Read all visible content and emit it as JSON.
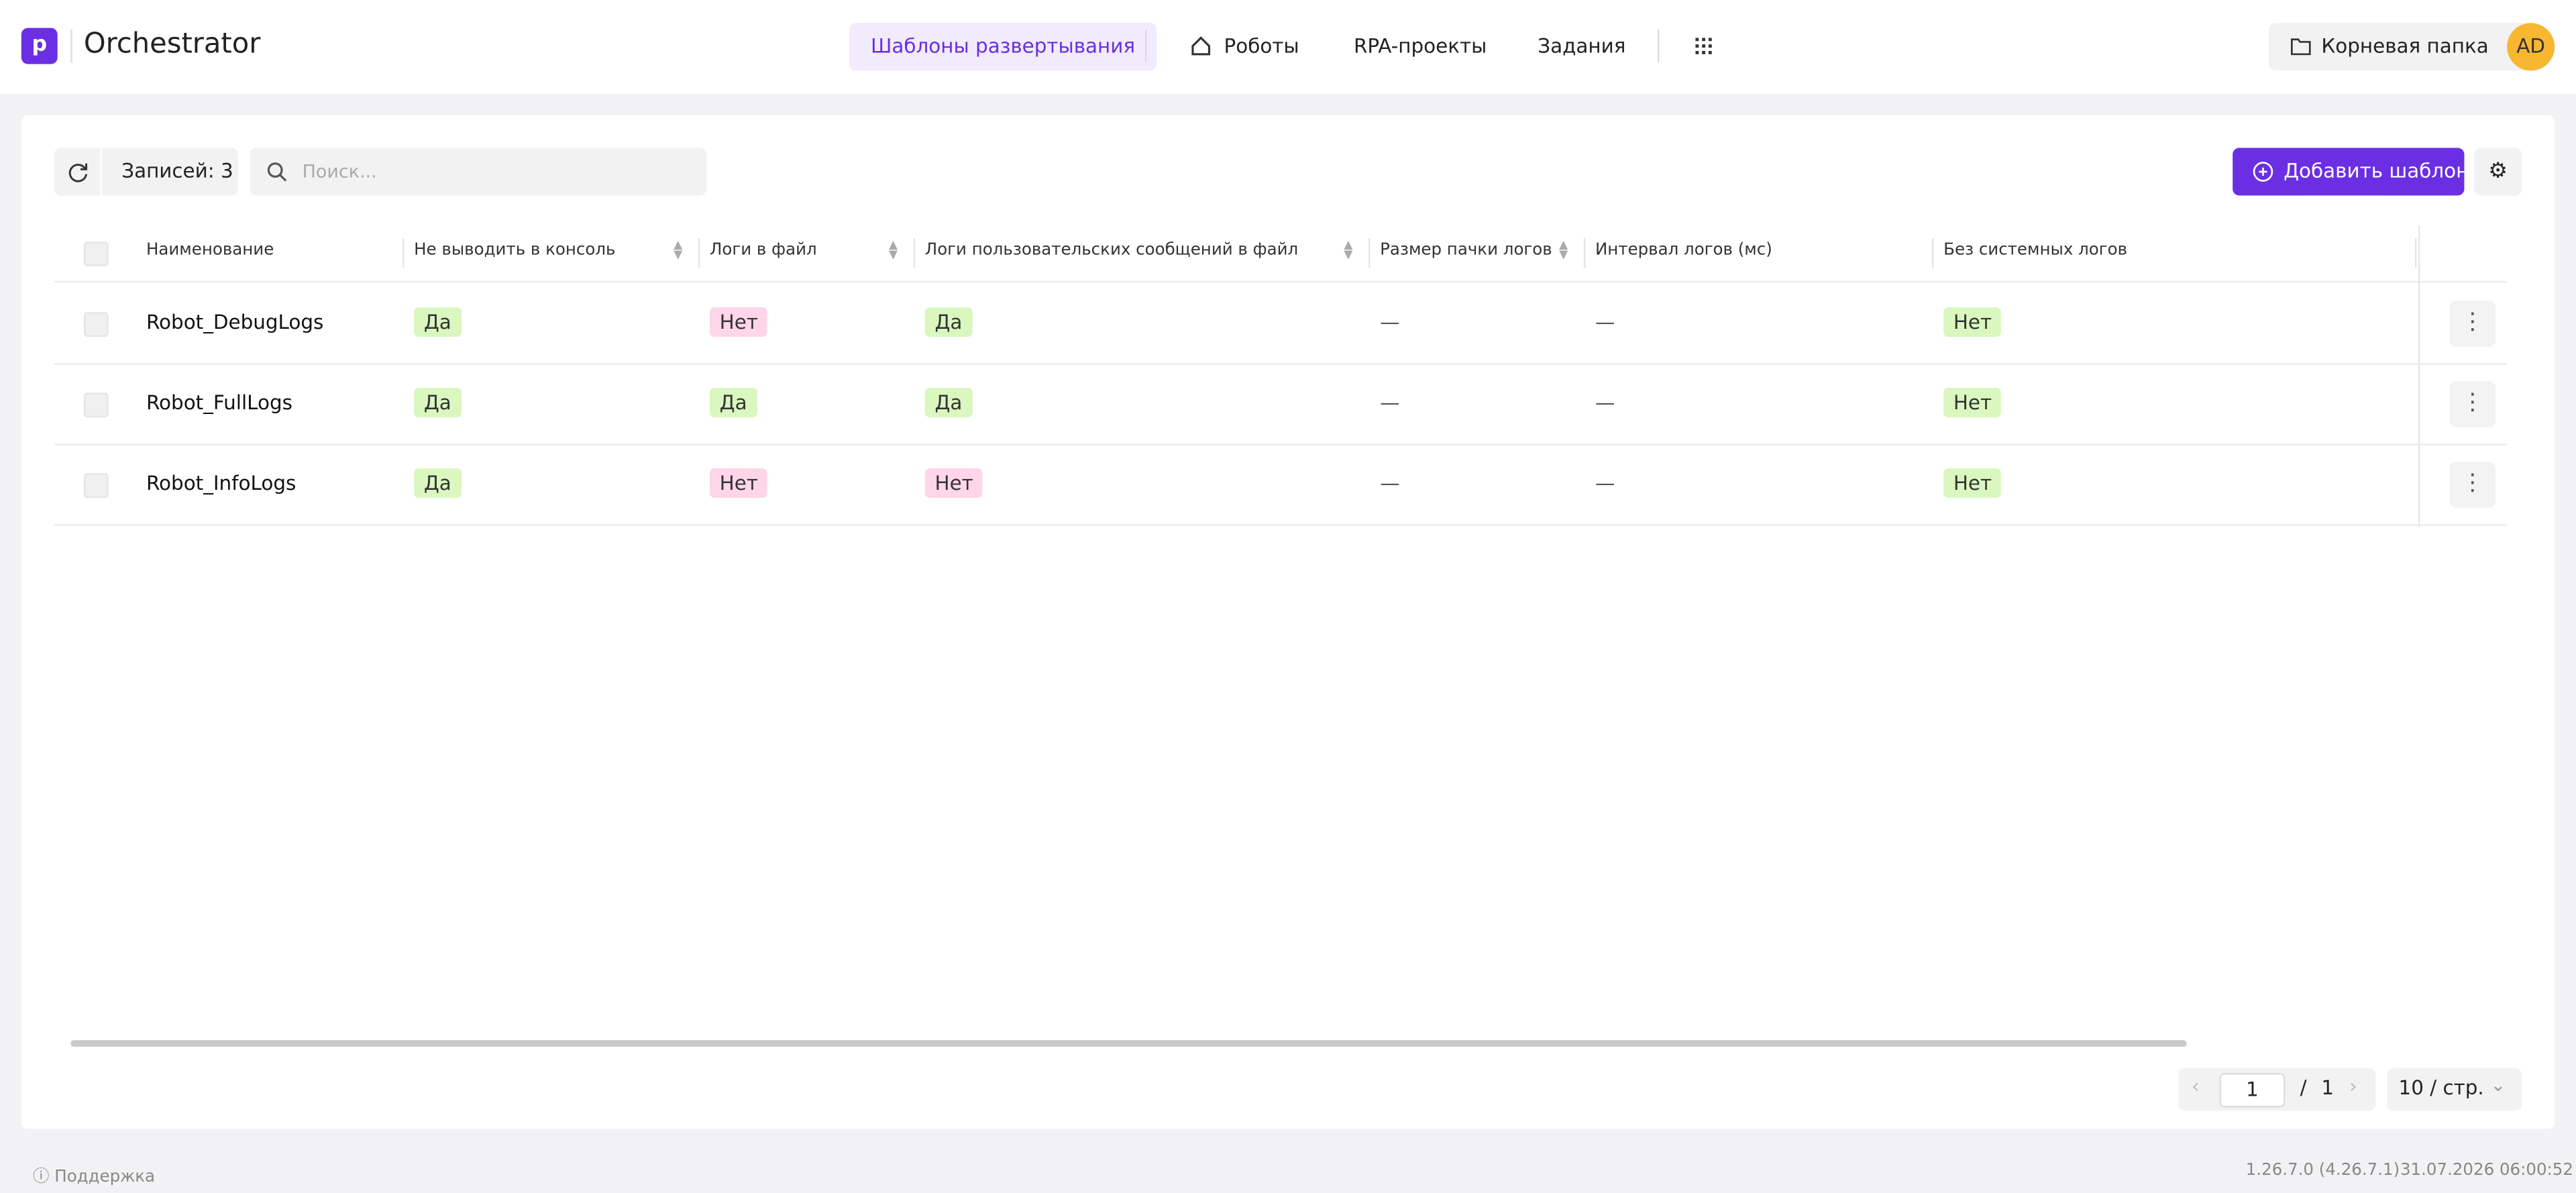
{
  "header": {
    "app_name": "Orchestrator",
    "nav": [
      "Шаблоны развертывания",
      "Роботы",
      "RPA-проекты",
      "Задания"
    ],
    "folder": "Корневая папка",
    "avatar": "AD"
  },
  "toolbar": {
    "records": "Записей: 3",
    "search_placeholder": "Поиск...",
    "add_button": "Добавить шаблон"
  },
  "table": {
    "columns": [
      {
        "title": "Наименование",
        "sortable": true
      },
      {
        "title": "Не выводить в консоль",
        "sortable": true,
        "tag_colors": {
          "Да": "#d9f7be",
          "Нет": "#ffd6e7"
        }
      },
      {
        "title": "Логи в файл",
        "sortable": true,
        "tag_colors": {
          "Да": "#d9f7be",
          "Нет": "#ffd6e7"
        }
      },
      {
        "title": "Логи пользовательских сообщений в файл",
        "sortable": true,
        "tag_colors": {
          "Да": "#d9f7be",
          "Нет": "#ffd6e7"
        }
      },
      {
        "title": "Размер пачки логов",
        "sortable": false
      },
      {
        "title": "Интервал логов (мс)",
        "sortable": false
      },
      {
        "title": "Без системных логов",
        "sortable": false,
        "tag_colors": {
          "Да": "#ffd6e7",
          "Нет": "#d9f7be"
        }
      }
    ],
    "rows": [
      [
        "Robot_DebugLogs",
        "Да",
        "Нет",
        "Да",
        "—",
        "—",
        "Нет"
      ],
      [
        "Robot_FullLogs",
        "Да",
        "Да",
        "Да",
        "—",
        "—",
        "Нет"
      ],
      [
        "Robot_InfoLogs",
        "Да",
        "Нет",
        "Нет",
        "—",
        "—",
        "Нет"
      ]
    ]
  },
  "pagination": {
    "page": "1",
    "separator": "/",
    "total": "1",
    "page_size": "10 / стр."
  },
  "footer": {
    "support": "Поддержка",
    "version": "1.26.7.0 (4.26.7.1)",
    "datetime": "31.07.2026 06:00:52"
  }
}
